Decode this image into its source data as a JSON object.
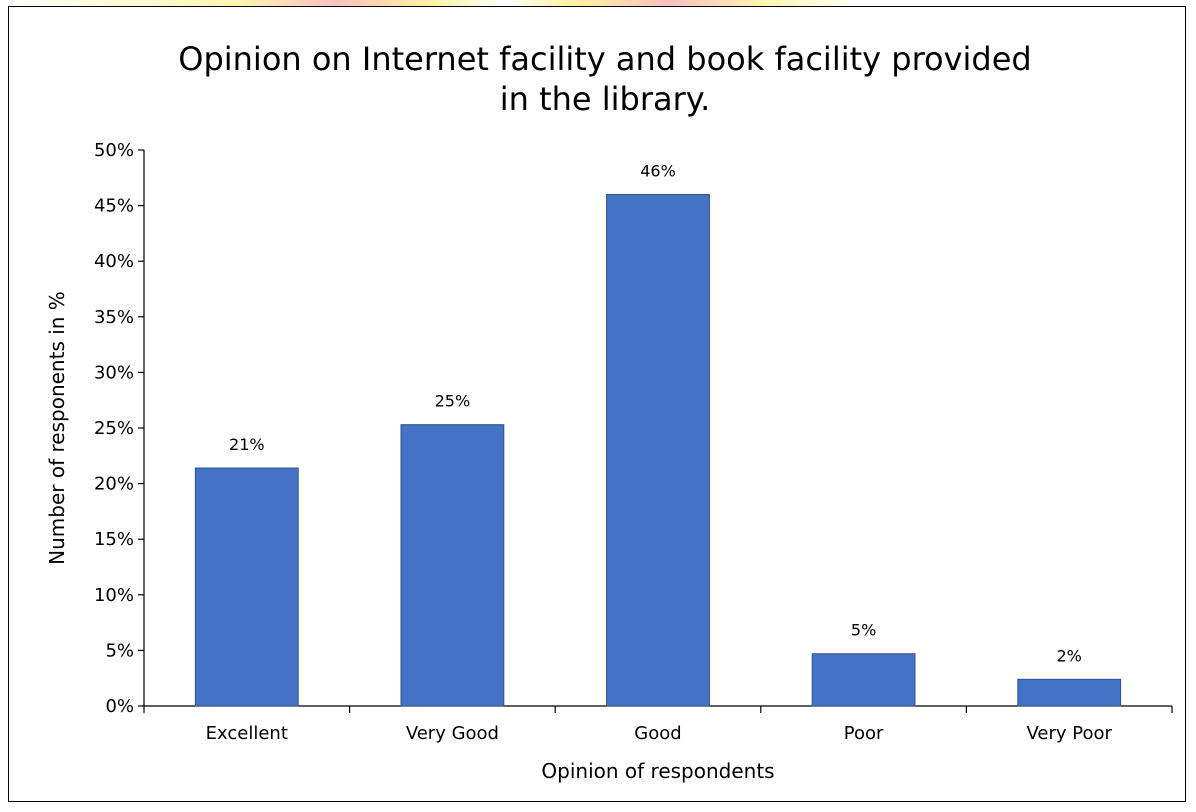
{
  "chart_data": {
    "type": "bar",
    "title_lines": [
      "Opinion on Internet facility and book facility provided",
      "in the library."
    ],
    "xlabel": "Opinion of respondents",
    "ylabel": "Number of responents in %",
    "categories": [
      "Excellent",
      "Very Good",
      "Good",
      "Poor",
      "Very Poor"
    ],
    "values": [
      21.4,
      25.3,
      46,
      4.7,
      2.4
    ],
    "data_labels": [
      "21%",
      "25%",
      "46%",
      "5%",
      "2%"
    ],
    "ylim": [
      0,
      50
    ],
    "yticks": [
      0,
      5,
      10,
      15,
      20,
      25,
      30,
      35,
      40,
      45,
      50
    ],
    "ytick_labels": [
      "0%",
      "5%",
      "10%",
      "15%",
      "20%",
      "25%",
      "30%",
      "35%",
      "40%",
      "45%",
      "50%"
    ],
    "bar_color": "#4472C4",
    "bar_edge_color": "#2F528F",
    "grid": false,
    "legend": "none"
  }
}
